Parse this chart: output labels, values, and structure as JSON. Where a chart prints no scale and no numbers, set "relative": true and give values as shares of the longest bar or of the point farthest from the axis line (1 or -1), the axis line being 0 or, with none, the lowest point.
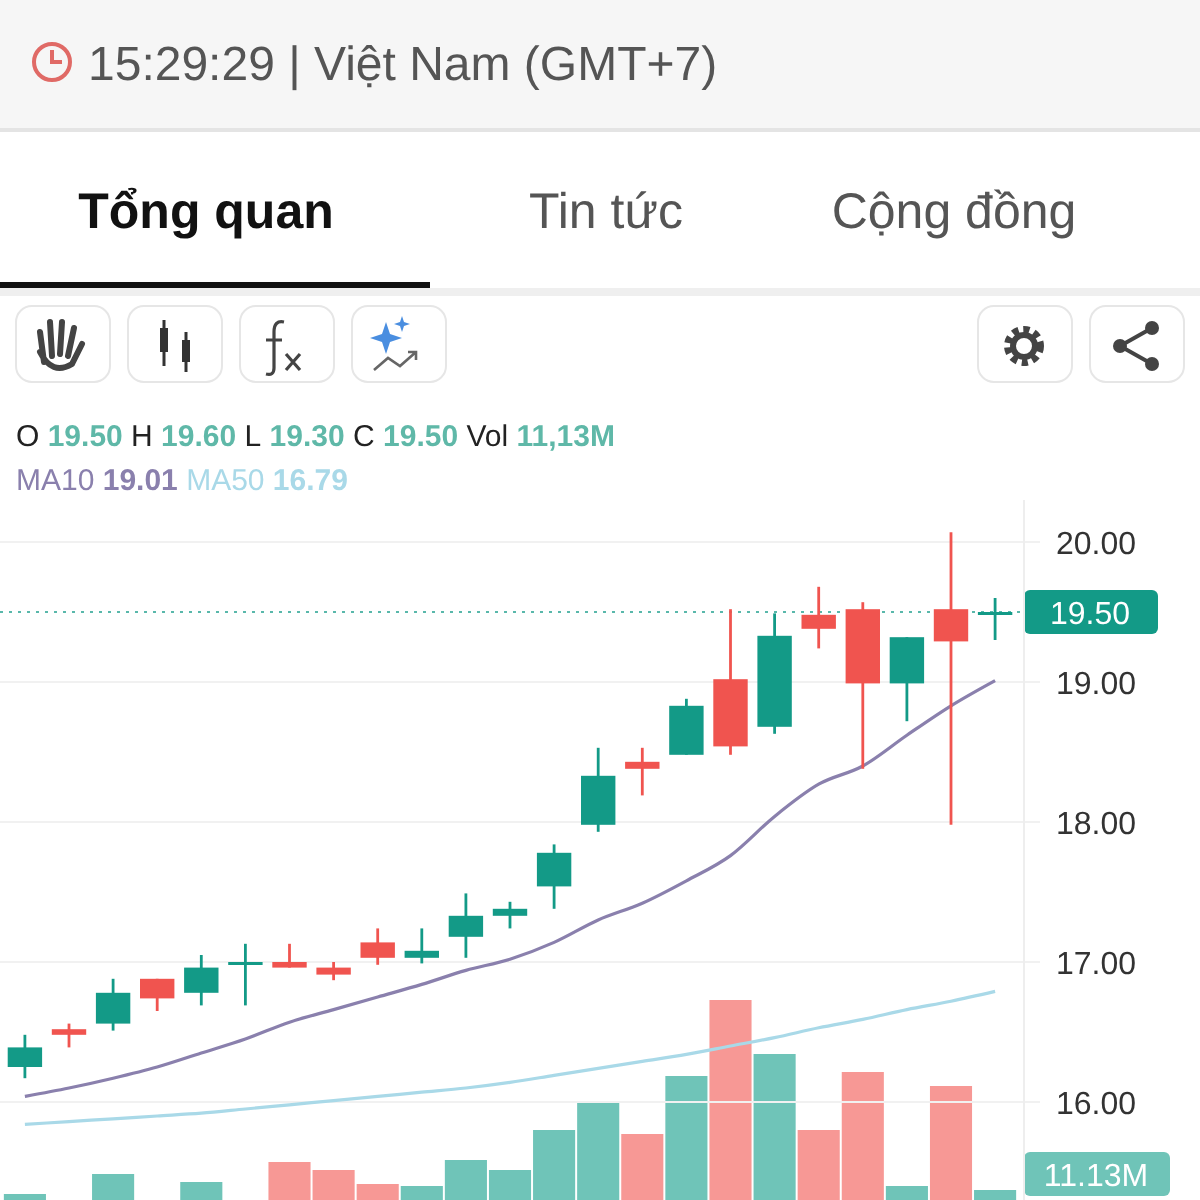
{
  "chart_data": [
    {
      "type": "other",
      "annotations": [
        "15:29:29 | Việt Nam (GMT+7)",
        "Tổng quan",
        "Tin tức",
        "Cộng đồng"
      ]
    },
    {
      "type": "candlestick",
      "categories": [
        null,
        null,
        null,
        null,
        null,
        null,
        null,
        null,
        null,
        null,
        null,
        null,
        null,
        null,
        null,
        null,
        null,
        null,
        null,
        null,
        null,
        null,
        null
      ],
      "ohlc": [
        [
          16.25,
          16.48,
          16.17,
          16.39
        ],
        [
          16.52,
          16.56,
          16.39,
          16.48
        ],
        [
          16.56,
          16.88,
          16.51,
          16.78
        ],
        [
          16.88,
          16.88,
          16.65,
          16.74
        ],
        [
          16.78,
          17.05,
          16.69,
          16.96
        ],
        [
          17.0,
          17.13,
          16.69,
          17.0
        ],
        [
          17.0,
          17.13,
          16.96,
          16.96
        ],
        [
          16.96,
          17.0,
          16.87,
          16.91
        ],
        [
          17.14,
          17.24,
          16.98,
          17.03
        ],
        [
          17.03,
          17.24,
          16.99,
          17.08
        ],
        [
          17.18,
          17.49,
          17.03,
          17.33
        ],
        [
          17.33,
          17.43,
          17.24,
          17.38
        ],
        [
          17.54,
          17.84,
          17.38,
          17.78
        ],
        [
          17.98,
          18.53,
          17.93,
          18.33
        ],
        [
          18.43,
          18.53,
          18.19,
          18.38
        ],
        [
          18.48,
          18.88,
          18.48,
          18.83
        ],
        [
          19.02,
          19.52,
          18.48,
          18.54
        ],
        [
          18.68,
          19.49,
          18.63,
          19.33
        ],
        [
          19.48,
          19.68,
          19.24,
          19.38
        ],
        [
          19.52,
          19.57,
          18.38,
          18.99
        ],
        [
          18.99,
          19.32,
          18.72,
          19.32
        ],
        [
          19.52,
          20.07,
          17.98,
          19.29
        ],
        [
          19.5,
          19.6,
          19.3,
          19.5
        ]
      ],
      "colors": [
        "#139a87",
        "#f0544f",
        "#139a87",
        "#f0544f",
        "#139a87",
        "#139a87",
        "#f0544f",
        "#f0544f",
        "#f0544f",
        "#139a87",
        "#139a87",
        "#139a87",
        "#139a87",
        "#139a87",
        "#f0544f",
        "#139a87",
        "#f0544f",
        "#139a87",
        "#f0544f",
        "#f0544f",
        "#139a87",
        "#f0544f",
        "#139a87"
      ],
      "series": [
        {
          "name": "MA10",
          "type": "line",
          "color": "#8a80ad",
          "values": [
            16.04,
            16.1,
            16.17,
            16.25,
            16.35,
            16.45,
            16.57,
            16.66,
            16.75,
            16.84,
            16.94,
            17.02,
            17.14,
            17.3,
            17.42,
            17.58,
            17.76,
            18.04,
            18.27,
            18.4,
            18.62,
            18.83,
            19.01
          ]
        },
        {
          "name": "MA50",
          "type": "line",
          "color": "#a9d9e8",
          "values": [
            15.84,
            15.86,
            15.88,
            15.9,
            15.92,
            15.95,
            15.98,
            16.01,
            16.04,
            16.07,
            16.1,
            16.14,
            16.19,
            16.24,
            16.29,
            16.34,
            16.4,
            16.46,
            16.53,
            16.59,
            16.66,
            16.72,
            16.79
          ]
        }
      ],
      "ylim": [
        15.3,
        20.3
      ],
      "yticks": [
        {
          "value": 16,
          "label": "16.00"
        },
        {
          "value": 17,
          "label": "17.00"
        },
        {
          "value": 18,
          "label": "18.00"
        },
        {
          "value": 19,
          "label": "19.00"
        },
        {
          "value": 20,
          "label": "20.00"
        }
      ],
      "grid": true,
      "ref_lines": [
        {
          "axis": "y",
          "value": 19.5,
          "label": "19.50",
          "color": "#139a87",
          "line_style": "dotted"
        }
      ],
      "annotations": [
        "O 19.50 H 19.60 L 19.30 C 19.50 Vol 11,13M",
        "19.01",
        "16.79"
      ]
    },
    {
      "type": "bar",
      "relative": true,
      "categories": [
        null,
        null,
        null,
        null,
        null,
        null,
        null,
        null,
        null,
        null,
        null,
        null,
        null,
        null,
        null,
        null,
        null,
        null,
        null,
        null,
        null,
        null,
        null
      ],
      "values": [
        0.03,
        0,
        0.13,
        0,
        0.09,
        0,
        0.19,
        0.15,
        0.08,
        0.07,
        0.2,
        0.15,
        0.35,
        0.49,
        0.33,
        0.62,
        1,
        0.73,
        0.35,
        0.64,
        0.07,
        0.57,
        0.05
      ],
      "colors": [
        "#6fc4b8",
        "#f79895",
        "#6fc4b8",
        "#f79895",
        "#6fc4b8",
        "#6fc4b8",
        "#f79895",
        "#f79895",
        "#f79895",
        "#6fc4b8",
        "#6fc4b8",
        "#6fc4b8",
        "#6fc4b8",
        "#6fc4b8",
        "#f79895",
        "#6fc4b8",
        "#f79895",
        "#6fc4b8",
        "#f79895",
        "#f79895",
        "#6fc4b8",
        "#f79895",
        "#6fc4b8"
      ],
      "annotations": [
        "11.13M"
      ]
    }
  ]
}
